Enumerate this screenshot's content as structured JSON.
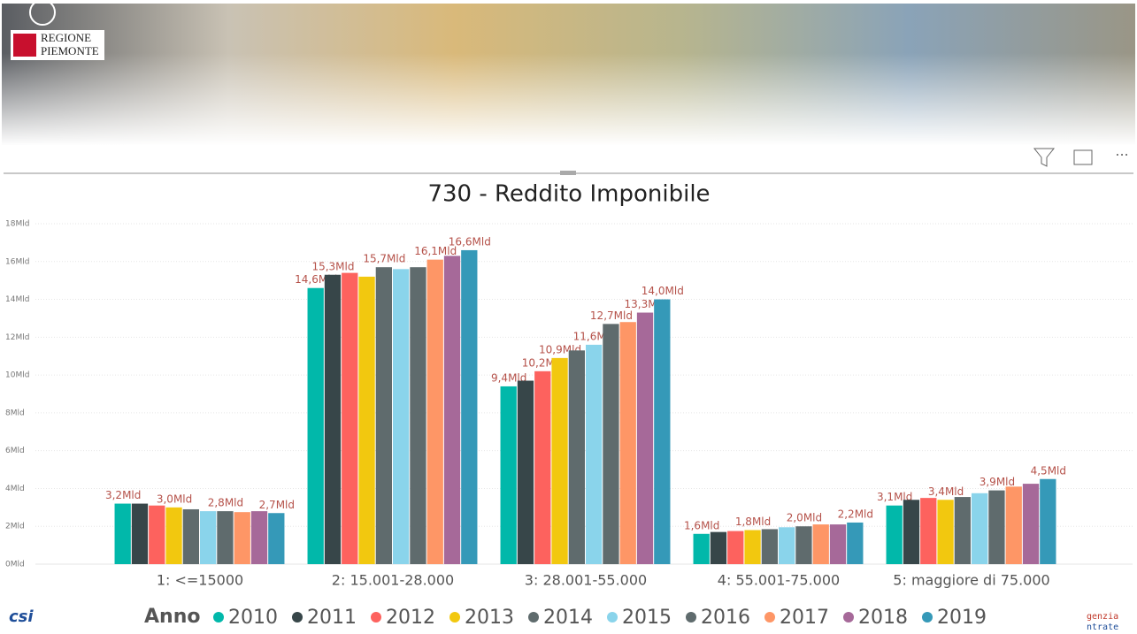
{
  "header": {
    "logo_line1": "REGIONE",
    "logo_line2": "PIEMONTE"
  },
  "footer": {
    "left_logo": "csi",
    "right_logo_line1": "genzia",
    "right_logo_line2": "ntrate"
  },
  "chart_data": {
    "type": "bar",
    "title": "730 - Reddito Imponibile",
    "legend_title": "Anno",
    "legend_position": "bottom",
    "categories": [
      "1: <=15000",
      "2: 15.001-28.000",
      "3: 28.001-55.000",
      "4: 55.001-75.000",
      "5: maggiore di 75.000"
    ],
    "ylim": [
      0,
      18
    ],
    "yticks": [
      {
        "value": 0,
        "label": "0Mld"
      },
      {
        "value": 2,
        "label": "2Mld"
      },
      {
        "value": 4,
        "label": "4Mld"
      },
      {
        "value": 6,
        "label": "6Mld"
      },
      {
        "value": 8,
        "label": "8Mld"
      },
      {
        "value": 10,
        "label": "10Mld"
      },
      {
        "value": 12,
        "label": "12Mld"
      },
      {
        "value": 14,
        "label": "14Mld"
      },
      {
        "value": 16,
        "label": "16Mld"
      },
      {
        "value": 18,
        "label": "18Mld"
      }
    ],
    "grid": true,
    "series": [
      {
        "name": "2010",
        "color": "#01B8AA",
        "values": [
          3.2,
          14.6,
          9.4,
          1.6,
          3.1
        ],
        "value_labels": [
          "3,2Mld",
          "14,6Mld",
          "9,4Mld",
          "1,6Mld",
          "3,1Mld"
        ]
      },
      {
        "name": "2011",
        "color": "#374649",
        "values": [
          3.2,
          15.3,
          9.7,
          1.7,
          3.4
        ],
        "value_labels": [
          null,
          "15,3Mld",
          null,
          null,
          null
        ]
      },
      {
        "name": "2012",
        "color": "#FD625E",
        "values": [
          3.1,
          15.4,
          10.2,
          1.75,
          3.5
        ],
        "value_labels": [
          null,
          null,
          "10,2Mld",
          null,
          null
        ]
      },
      {
        "name": "2013",
        "color": "#F2C80F",
        "values": [
          3.0,
          15.2,
          10.9,
          1.8,
          3.4
        ],
        "value_labels": [
          "3,0Mld",
          null,
          "10,9Mld",
          "1,8Mld",
          "3,4Mld"
        ]
      },
      {
        "name": "2014",
        "color": "#5F6B6D",
        "values": [
          2.9,
          15.7,
          11.3,
          1.85,
          3.55
        ],
        "value_labels": [
          null,
          "15,7Mld",
          null,
          null,
          null
        ]
      },
      {
        "name": "2015",
        "color": "#8AD4EB",
        "values": [
          2.8,
          15.6,
          11.6,
          1.95,
          3.75
        ],
        "value_labels": [
          null,
          null,
          "11,6Mld",
          null,
          null
        ]
      },
      {
        "name": "2016",
        "color": "#5F6B6D",
        "values": [
          2.8,
          15.7,
          12.7,
          2.0,
          3.9
        ],
        "value_labels": [
          "2,8Mld",
          null,
          "12,7Mld",
          "2,0Mld",
          "3,9Mld"
        ]
      },
      {
        "name": "2017",
        "color": "#FE9666",
        "values": [
          2.75,
          16.1,
          12.8,
          2.1,
          4.1
        ],
        "value_labels": [
          null,
          "16,1Mld",
          null,
          null,
          null
        ]
      },
      {
        "name": "2018",
        "color": "#A66999",
        "values": [
          2.8,
          16.3,
          13.3,
          2.1,
          4.25
        ],
        "value_labels": [
          null,
          null,
          "13,3Mld",
          null,
          null
        ]
      },
      {
        "name": "2019",
        "color": "#3599B8",
        "values": [
          2.7,
          16.6,
          14.0,
          2.2,
          4.5
        ],
        "value_labels": [
          "2,7Mld",
          "16,6Mld",
          "14,0Mld",
          "2,2Mld",
          "4,5Mld"
        ]
      }
    ]
  }
}
